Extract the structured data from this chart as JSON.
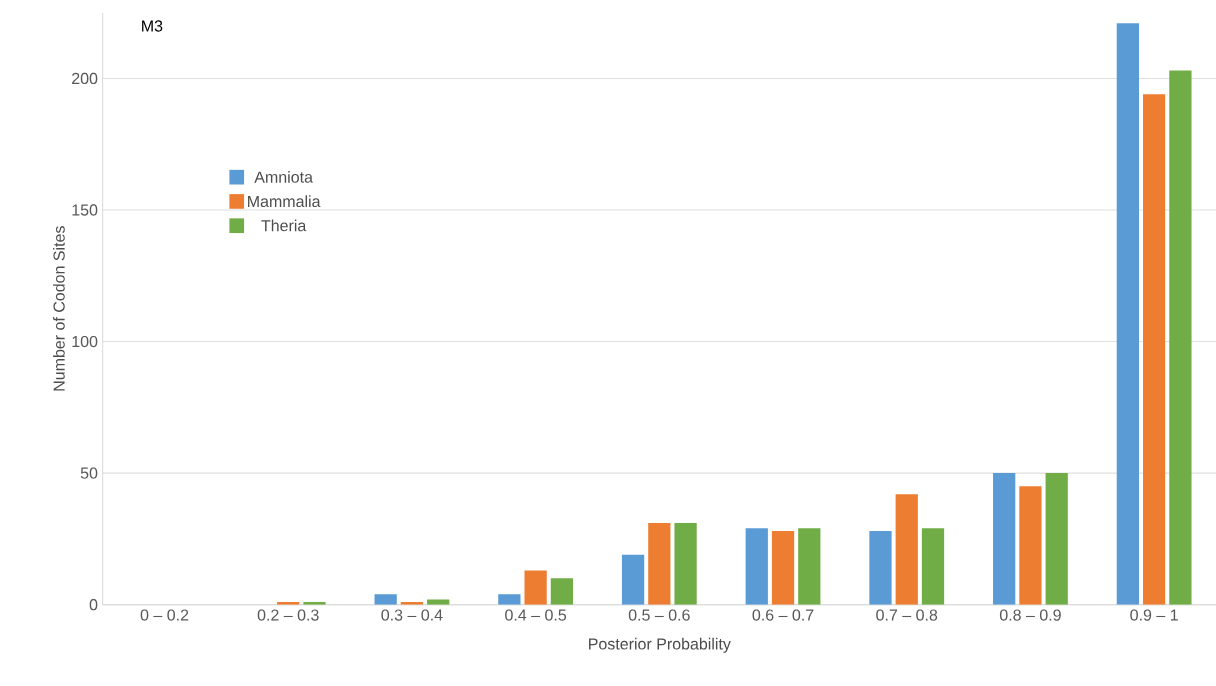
{
  "chart_data": {
    "type": "bar",
    "annotations": [
      "M3"
    ],
    "xlabel": "Posterior Probability",
    "ylabel": "Number of Codon Sites",
    "categories": [
      "0 – 0.2",
      "0.2 – 0.3",
      "0.3 – 0.4",
      "0.4 – 0.5",
      "0.5 – 0.6",
      "0.6 – 0.7",
      "0.7 – 0.8",
      "0.8 – 0.9",
      "0.9 – 1"
    ],
    "series": [
      {
        "name": "Amniota",
        "color": "#5b9bd5",
        "values": [
          0,
          0,
          4,
          4,
          19,
          29,
          28,
          50,
          221
        ]
      },
      {
        "name": "Mammalia",
        "color": "#ed7d31",
        "values": [
          0,
          1,
          1,
          13,
          31,
          28,
          42,
          45,
          194
        ]
      },
      {
        "name": "Theria",
        "color": "#70ad47",
        "values": [
          0,
          1,
          2,
          10,
          31,
          29,
          29,
          50,
          203
        ]
      }
    ],
    "ylim": [
      0,
      225
    ],
    "yticks": [
      0,
      50,
      100,
      150,
      200
    ],
    "grid": "y",
    "legend": "left"
  }
}
